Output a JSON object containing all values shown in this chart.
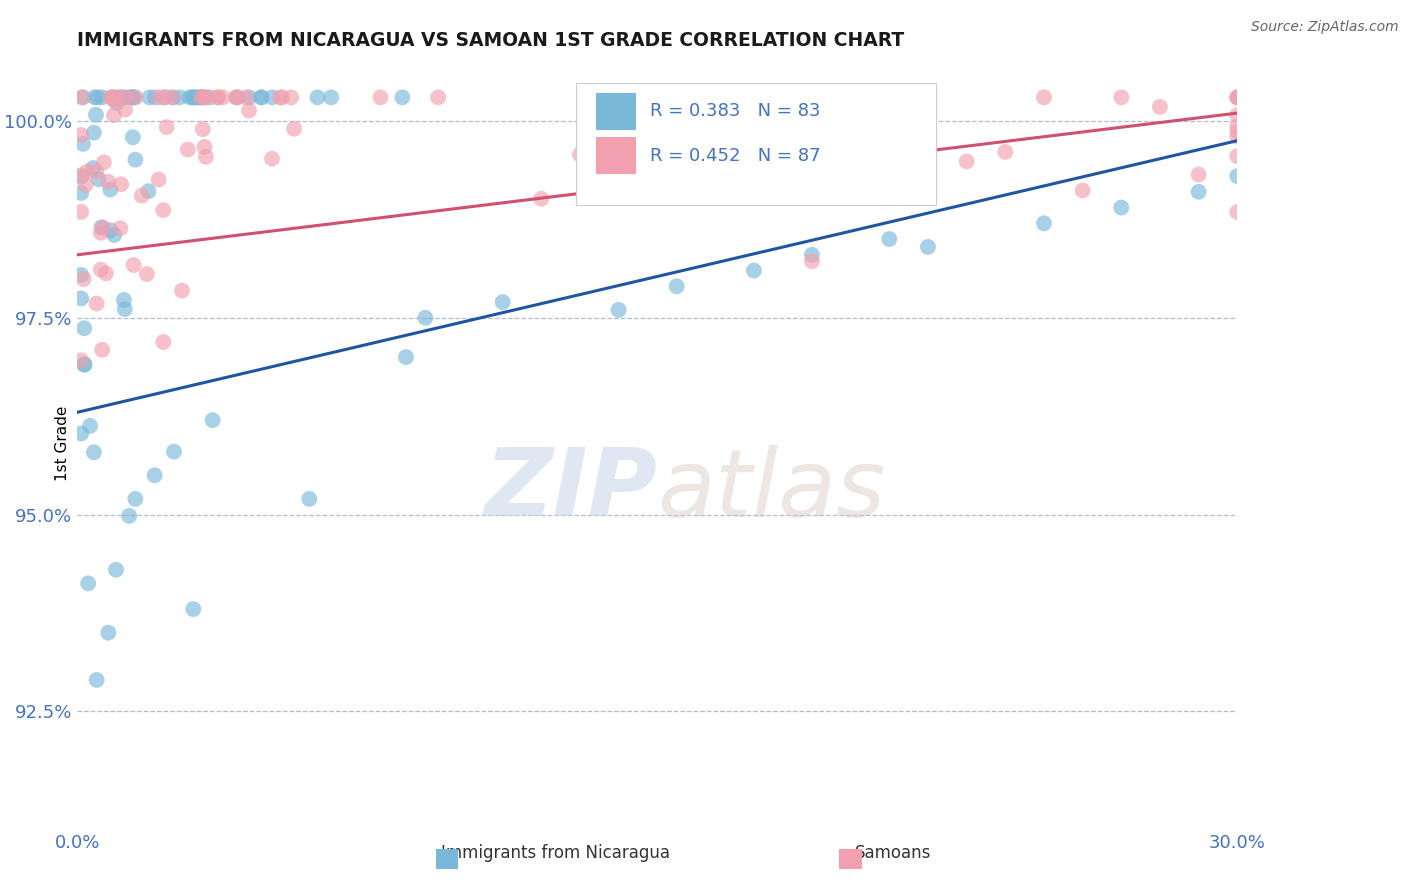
{
  "title": "IMMIGRANTS FROM NICARAGUA VS SAMOAN 1ST GRADE CORRELATION CHART",
  "source_text": "Source: ZipAtlas.com",
  "ylabel": "1st Grade",
  "xlim": [
    0.0,
    0.3
  ],
  "ylim": [
    0.91,
    1.008
  ],
  "xticks": [
    0.0,
    0.3
  ],
  "xticklabels": [
    "0.0%",
    "30.0%"
  ],
  "yticks": [
    0.925,
    0.95,
    0.975,
    1.0
  ],
  "yticklabels": [
    "92.5%",
    "95.0%",
    "97.5%",
    "100.0%"
  ],
  "blue_color": "#7ab8d9",
  "pink_color": "#f2a0b0",
  "trend_blue": "#2155a0",
  "trend_pink": "#d05070",
  "legend_R_blue": "R = 0.383",
  "legend_N_blue": "N = 83",
  "legend_R_pink": "R = 0.452",
  "legend_N_pink": "N = 87",
  "watermark_zip": "ZIP",
  "watermark_atlas": "atlas",
  "background_color": "#ffffff",
  "grid_color": "#b0bcd8",
  "tick_color": "#4472c4",
  "title_color": "#1a1a1a",
  "source_color": "#666666"
}
